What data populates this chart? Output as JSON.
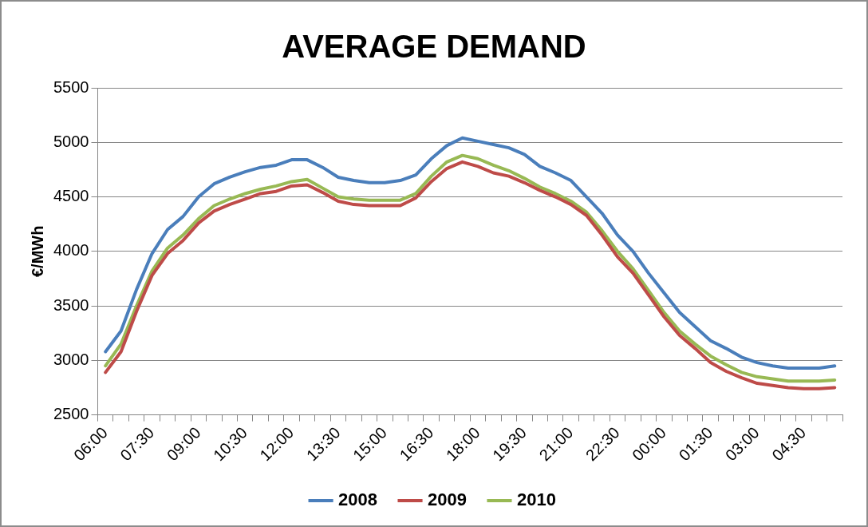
{
  "chart_data": {
    "type": "line",
    "title": "AVERAGE DEMAND",
    "ylabel": "€/MWh",
    "categories": [
      "06:00",
      null,
      null,
      "07:30",
      null,
      null,
      "09:00",
      null,
      null,
      "10:30",
      null,
      null,
      "12:00",
      null,
      null,
      "13:30",
      null,
      null,
      "15:00",
      null,
      null,
      "16:30",
      null,
      null,
      "18:00",
      null,
      null,
      "19:30",
      null,
      null,
      "21:00",
      null,
      null,
      "22:30",
      null,
      null,
      "00:00",
      null,
      null,
      "01:30",
      null,
      null,
      "03:00",
      null,
      null,
      "04:30",
      null,
      null
    ],
    "series": [
      {
        "name": "2008",
        "color": "#4a7ebb",
        "values": [
          3080,
          3270,
          3650,
          3980,
          4200,
          4320,
          4500,
          4620,
          4680,
          4730,
          4770,
          4790,
          4840,
          4840,
          4770,
          4680,
          4650,
          4630,
          4630,
          4650,
          4700,
          4850,
          4970,
          5040,
          5010,
          4980,
          4950,
          4890,
          4780,
          4720,
          4650,
          4500,
          4350,
          4150,
          4000,
          3800,
          3620,
          3440,
          3310,
          3180,
          3110,
          3030,
          2980,
          2950,
          2930,
          2930,
          2930,
          2950
        ]
      },
      {
        "name": "2009",
        "color": "#be4b48",
        "values": [
          2890,
          3080,
          3450,
          3780,
          3980,
          4100,
          4260,
          4370,
          4430,
          4480,
          4530,
          4550,
          4600,
          4610,
          4540,
          4460,
          4430,
          4420,
          4420,
          4420,
          4490,
          4640,
          4760,
          4820,
          4780,
          4720,
          4690,
          4630,
          4560,
          4500,
          4430,
          4330,
          4150,
          3950,
          3800,
          3600,
          3400,
          3230,
          3110,
          2980,
          2900,
          2840,
          2790,
          2770,
          2750,
          2740,
          2740,
          2750
        ]
      },
      {
        "name": "2010",
        "color": "#98b954",
        "values": [
          2950,
          3150,
          3500,
          3820,
          4030,
          4150,
          4300,
          4420,
          4480,
          4530,
          4570,
          4600,
          4640,
          4660,
          4580,
          4500,
          4480,
          4470,
          4470,
          4470,
          4530,
          4690,
          4820,
          4880,
          4850,
          4790,
          4740,
          4670,
          4590,
          4530,
          4460,
          4360,
          4190,
          4000,
          3840,
          3640,
          3440,
          3270,
          3150,
          3040,
          2960,
          2890,
          2850,
          2830,
          2810,
          2810,
          2810,
          2820
        ]
      }
    ],
    "ylim": [
      2500,
      5500
    ],
    "yticks": [
      2500,
      3000,
      3500,
      4000,
      4500,
      5000,
      5500
    ],
    "grid": "y",
    "legend": "bottom"
  }
}
